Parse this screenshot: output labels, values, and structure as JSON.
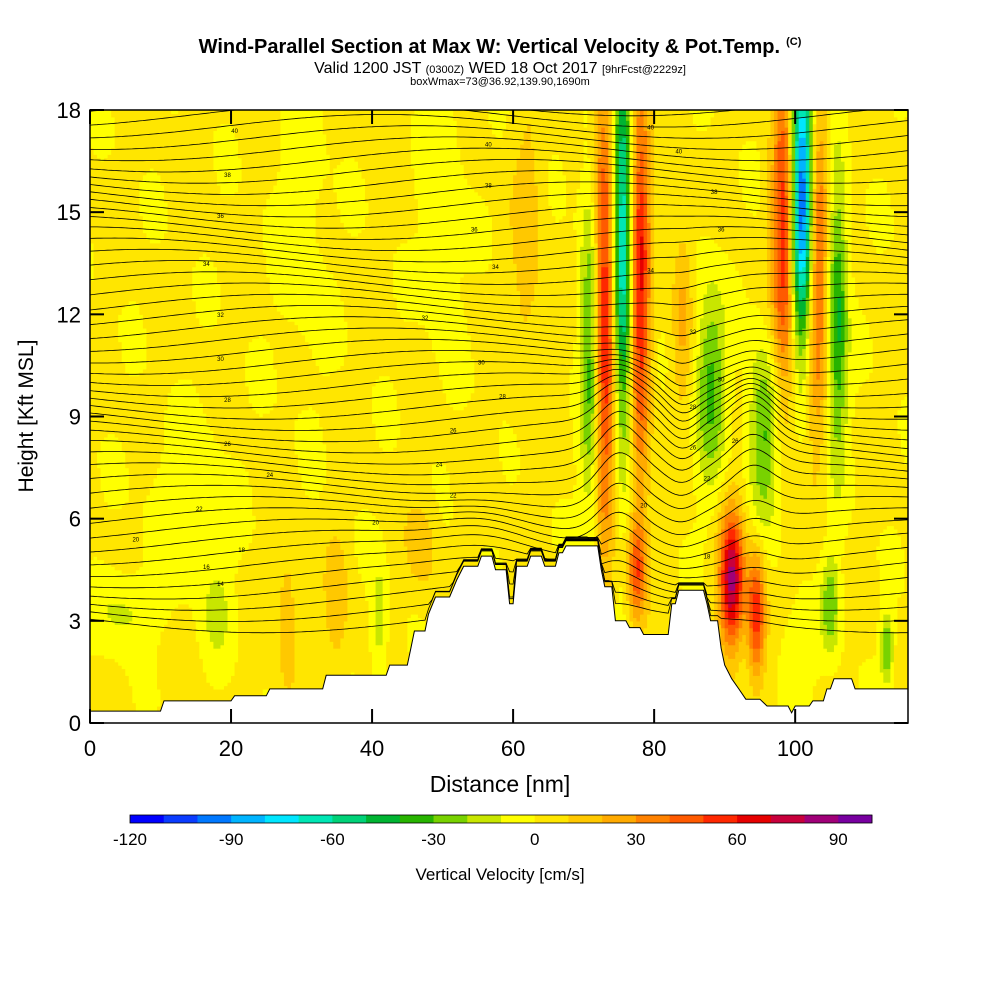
{
  "chart_data": {
    "type": "heatmap",
    "title": "Wind-Parallel Section at Max W: Vertical Velocity & Pot.Temp.",
    "copyright_mark": "(C)",
    "subtitle_main": "Valid 1200 JST",
    "subtitle_utc": "(0300Z)",
    "subtitle_date": "WED 18 Oct 2017",
    "subtitle_forecast": "[9hrFcst@2229z]",
    "subtitle2": "boxWmax=73@36.92,139.90,1690m",
    "xlabel": "Distance [nm]",
    "ylabel": "Height [Kft MSL]",
    "xlim": [
      0,
      116
    ],
    "ylim": [
      0,
      18
    ],
    "x_ticks": [
      "0",
      "20",
      "40",
      "60",
      "80",
      "100"
    ],
    "y_ticks": [
      "0",
      "3",
      "6",
      "9",
      "12",
      "15",
      "18"
    ],
    "colorbar": {
      "label": "Vertical Velocity [cm/s]",
      "range": [
        -120,
        100
      ],
      "step": 10,
      "tick_values": [
        -120,
        -90,
        -60,
        -30,
        0,
        30,
        60,
        90
      ],
      "tick_labels": [
        "-120",
        "-90",
        "-60",
        "-30",
        "0",
        "30",
        "60",
        "90"
      ],
      "colors": [
        "#0000ff",
        "#0a3cff",
        "#0078ff",
        "#00b4ff",
        "#00e6ff",
        "#00e6b4",
        "#00d278",
        "#00b432",
        "#28b400",
        "#78d200",
        "#c8e600",
        "#ffff00",
        "#ffe600",
        "#ffc800",
        "#ffaa00",
        "#ff8200",
        "#ff5a00",
        "#ff2800",
        "#e60000",
        "#c8003c",
        "#a00078",
        "#7800a0"
      ]
    },
    "terrain_kft": [
      [
        0,
        0.35
      ],
      [
        10,
        0.35
      ],
      [
        10.5,
        0.65
      ],
      [
        20,
        0.65
      ],
      [
        20.5,
        0.8
      ],
      [
        25,
        0.8
      ],
      [
        25.5,
        1.0
      ],
      [
        33,
        1.0
      ],
      [
        33.5,
        1.4
      ],
      [
        42,
        1.4
      ],
      [
        42.5,
        1.7
      ],
      [
        45,
        1.7
      ],
      [
        45.5,
        2.2
      ],
      [
        46,
        2.7
      ],
      [
        47.5,
        2.7
      ],
      [
        48,
        3.2
      ],
      [
        49,
        3.7
      ],
      [
        51,
        3.7
      ],
      [
        52,
        4.2
      ],
      [
        53,
        4.6
      ],
      [
        55,
        4.6
      ],
      [
        55.5,
        4.9
      ],
      [
        57,
        4.9
      ],
      [
        57.5,
        4.5
      ],
      [
        59,
        4.5
      ],
      [
        59.5,
        3.5
      ],
      [
        60,
        3.5
      ],
      [
        60.5,
        4.6
      ],
      [
        62,
        4.6
      ],
      [
        62.5,
        4.9
      ],
      [
        64,
        4.9
      ],
      [
        64.5,
        4.6
      ],
      [
        66,
        4.6
      ],
      [
        66.5,
        5.0
      ],
      [
        67,
        5.0
      ],
      [
        67.5,
        5.2
      ],
      [
        72,
        5.2
      ],
      [
        72.5,
        4.5
      ],
      [
        73,
        4.0
      ],
      [
        74,
        4.0
      ],
      [
        74.5,
        3.0
      ],
      [
        76,
        3.0
      ],
      [
        76.5,
        2.8
      ],
      [
        78,
        2.8
      ],
      [
        78.5,
        2.6
      ],
      [
        80,
        2.6
      ],
      [
        80.5,
        2.6
      ],
      [
        82,
        2.6
      ],
      [
        82.5,
        3.5
      ],
      [
        83,
        3.5
      ],
      [
        83.5,
        3.9
      ],
      [
        87,
        3.9
      ],
      [
        87.5,
        3.5
      ],
      [
        88,
        3.0
      ],
      [
        89,
        3.0
      ],
      [
        89.5,
        2.2
      ],
      [
        90,
        1.7
      ],
      [
        91,
        1.3
      ],
      [
        92,
        1.0
      ],
      [
        93,
        0.7
      ],
      [
        94,
        0.7
      ],
      [
        95,
        0.7
      ],
      [
        96,
        0.5
      ],
      [
        99,
        0.5
      ],
      [
        99.5,
        0.3
      ],
      [
        100,
        0.5
      ],
      [
        102,
        0.5
      ],
      [
        102.5,
        0.65
      ],
      [
        104,
        0.65
      ],
      [
        104.5,
        1.0
      ],
      [
        105,
        1.0
      ],
      [
        105.5,
        1.3
      ],
      [
        108,
        1.3
      ],
      [
        108.5,
        1.0
      ],
      [
        116,
        1.0
      ]
    ],
    "theta_contour_labels": [
      {
        "text": "40",
        "x": 20.5,
        "y": 17.4
      },
      {
        "text": "38",
        "x": 19.5,
        "y": 16.1
      },
      {
        "text": "36",
        "x": 18.5,
        "y": 14.9
      },
      {
        "text": "34",
        "x": 16.5,
        "y": 13.5
      },
      {
        "text": "32",
        "x": 18.5,
        "y": 12.0
      },
      {
        "text": "30",
        "x": 18.5,
        "y": 10.7
      },
      {
        "text": "28",
        "x": 19.5,
        "y": 9.5
      },
      {
        "text": "26",
        "x": 19.5,
        "y": 8.2
      },
      {
        "text": "24",
        "x": 25.5,
        "y": 7.3
      },
      {
        "text": "22",
        "x": 15.5,
        "y": 6.3
      },
      {
        "text": "20",
        "x": 6.5,
        "y": 5.4
      },
      {
        "text": "18",
        "x": 21.5,
        "y": 5.1
      },
      {
        "text": "16",
        "x": 16.5,
        "y": 4.6
      },
      {
        "text": "14",
        "x": 18.5,
        "y": 4.1
      },
      {
        "text": "40",
        "x": 56.5,
        "y": 17.0
      },
      {
        "text": "38",
        "x": 56.5,
        "y": 15.8
      },
      {
        "text": "36",
        "x": 54.5,
        "y": 14.5
      },
      {
        "text": "34",
        "x": 57.5,
        "y": 13.4
      },
      {
        "text": "32",
        "x": 47.5,
        "y": 11.9
      },
      {
        "text": "30",
        "x": 55.5,
        "y": 10.6
      },
      {
        "text": "28",
        "x": 58.5,
        "y": 9.6
      },
      {
        "text": "26",
        "x": 51.5,
        "y": 8.6
      },
      {
        "text": "24",
        "x": 49.5,
        "y": 7.6
      },
      {
        "text": "22",
        "x": 51.5,
        "y": 6.7
      },
      {
        "text": "20",
        "x": 40.5,
        "y": 5.9
      },
      {
        "text": "40",
        "x": 79.5,
        "y": 17.5
      },
      {
        "text": "40",
        "x": 83.5,
        "y": 16.8
      },
      {
        "text": "38",
        "x": 88.5,
        "y": 15.6
      },
      {
        "text": "36",
        "x": 89.5,
        "y": 14.5
      },
      {
        "text": "34",
        "x": 79.5,
        "y": 13.3
      },
      {
        "text": "32",
        "x": 85.5,
        "y": 11.5
      },
      {
        "text": "30",
        "x": 89.5,
        "y": 10.1
      },
      {
        "text": "28",
        "x": 85.5,
        "y": 9.3
      },
      {
        "text": "26",
        "x": 85.5,
        "y": 8.1
      },
      {
        "text": "26",
        "x": 91.5,
        "y": 8.3
      },
      {
        "text": "22",
        "x": 87.5,
        "y": 7.2
      },
      {
        "text": "20",
        "x": 78.5,
        "y": 6.4
      },
      {
        "text": "18",
        "x": 87.5,
        "y": 4.9
      }
    ],
    "features": [
      {
        "type": "updraft",
        "x": 73,
        "y": 12,
        "sx": 1.1,
        "sy": 4.5,
        "w": 65
      },
      {
        "type": "updraft",
        "x": 78,
        "y": 13,
        "sx": 1.0,
        "sy": 4.5,
        "w": 60
      },
      {
        "type": "downdraft",
        "x": 75.5,
        "y": 14,
        "sx": 1.0,
        "sy": 4.0,
        "w": -75
      },
      {
        "type": "downdraft",
        "x": 71,
        "y": 11,
        "sx": 1.0,
        "sy": 3.5,
        "w": -40
      },
      {
        "type": "updraft",
        "x": 98.5,
        "y": 14.5,
        "sx": 1.2,
        "sy": 3.5,
        "w": 60
      },
      {
        "type": "updraft",
        "x": 103,
        "y": 14,
        "sx": 1.1,
        "sy": 3.5,
        "w": 55
      },
      {
        "type": "downdraft",
        "x": 101,
        "y": 15.5,
        "sx": 1.2,
        "sy": 3.0,
        "w": -115
      },
      {
        "type": "downdraft",
        "x": 106,
        "y": 12,
        "sx": 1.0,
        "sy": 3.0,
        "w": -45
      },
      {
        "type": "downdraft",
        "x": 88,
        "y": 10,
        "sx": 1.5,
        "sy": 2.0,
        "w": -35
      },
      {
        "type": "downdraft",
        "x": 95.5,
        "y": 8.5,
        "sx": 1.5,
        "sy": 1.8,
        "w": -35
      },
      {
        "type": "updraft",
        "x": 91,
        "y": 4.2,
        "sx": 1.2,
        "sy": 1.4,
        "w": 80
      },
      {
        "type": "updraft",
        "x": 94.5,
        "y": 3.2,
        "sx": 0.9,
        "sy": 1.3,
        "w": 55
      },
      {
        "type": "downdraft",
        "x": 105,
        "y": 3.5,
        "sx": 0.9,
        "sy": 1.0,
        "w": -30
      },
      {
        "type": "updraft",
        "x": 77.5,
        "y": 4.5,
        "sx": 0.9,
        "sy": 1.0,
        "w": 40
      },
      {
        "type": "updraft",
        "x": 84,
        "y": 12,
        "sx": 1.0,
        "sy": 2.0,
        "w": 20
      },
      {
        "type": "updraft",
        "x": 62,
        "y": 14,
        "sx": 1.5,
        "sy": 3.0,
        "w": 15
      },
      {
        "type": "downdraft",
        "x": 14,
        "y": 6.5,
        "sx": 3.5,
        "sy": 1.5,
        "w": -12
      },
      {
        "type": "downdraft",
        "x": 5,
        "y": 3.3,
        "sx": 3.0,
        "sy": 0.8,
        "w": -15
      },
      {
        "type": "downdraft",
        "x": 18,
        "y": 3.3,
        "sx": 1.5,
        "sy": 1.0,
        "w": -15
      },
      {
        "type": "downdraft",
        "x": 41,
        "y": 3.0,
        "sx": 0.8,
        "sy": 1.2,
        "w": -20
      },
      {
        "type": "downdraft",
        "x": 113,
        "y": 2.2,
        "sx": 0.6,
        "sy": 0.7,
        "w": -35
      },
      {
        "type": "updraft",
        "x": 28,
        "y": 3.0,
        "sx": 1.0,
        "sy": 1.5,
        "w": 18
      },
      {
        "type": "updraft",
        "x": 35,
        "y": 3.5,
        "sx": 1.2,
        "sy": 1.5,
        "w": 15
      },
      {
        "type": "updraft",
        "x": 47,
        "y": 5.2,
        "sx": 1.5,
        "sy": 1.0,
        "w": 15
      },
      {
        "type": "downdraft",
        "x": 100,
        "y": 2.0,
        "sx": 2.0,
        "sy": 1.0,
        "w": -10
      },
      {
        "type": "downdraft",
        "x": 30,
        "y": 14.5,
        "sx": 2.5,
        "sy": 3.0,
        "w": -8
      },
      {
        "type": "downdraft",
        "x": 50,
        "y": 15.5,
        "sx": 2.0,
        "sy": 3.0,
        "w": -10
      }
    ]
  }
}
